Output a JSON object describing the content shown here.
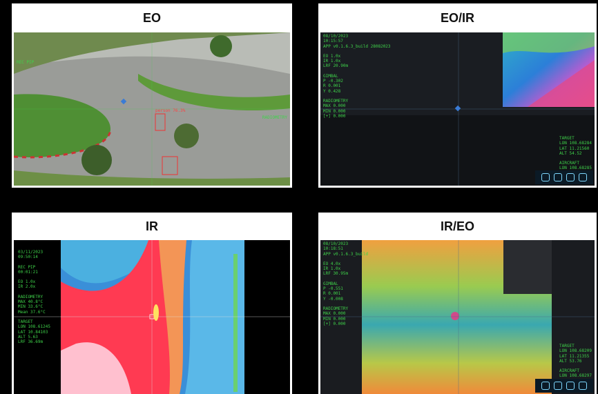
{
  "panels": [
    {
      "title": "EO",
      "left_groups": [
        [
          "REC PIP"
        ]
      ],
      "right_groups": [
        [
          "RADIOMETRY"
        ]
      ],
      "detection": "person 76.3%"
    },
    {
      "title": "EO/IR",
      "left_groups": [
        [
          "08/10/2023",
          "10:15:57",
          "APP v0.1.6.3_build 28082023"
        ],
        [
          "EO 1.0x",
          "IR 1.0x",
          "LRF 20.90m"
        ],
        [
          "GIMBAL",
          "P -0.302",
          "R 0.001",
          "Y 0.428"
        ],
        [
          "RADIOMETRY",
          "MAX 0.000",
          "MIN 0.000",
          "[+] 0.000"
        ]
      ],
      "right_groups": [
        [
          "TARGET",
          "LON 108.68284",
          "LAT 11.21560",
          "ALT 54.52"
        ],
        [
          "AIRCRAFT",
          "LON 108.68285"
        ]
      ]
    },
    {
      "title": "IR",
      "left_groups": [
        [
          "03/11/2023",
          "09:50:14"
        ],
        [
          "REC PIP",
          "00:01:21"
        ],
        [
          "EO 1.0x",
          "IR 2.0x"
        ],
        [
          "RADIOMETRY",
          "MAX 40.8°C",
          "MIN 33.6°C",
          "Mean 37.6°C"
        ],
        [
          "TARGET",
          "LON 108.61245",
          "LAT 10.84103",
          "ALT 5.63",
          "LRF 36.69m"
        ]
      ],
      "right_groups": []
    },
    {
      "title": "IR/EO",
      "left_groups": [
        [
          "08/10/2023",
          "10:18:51",
          "APP v0.1.6.3_build"
        ],
        [
          "EO 4.0x",
          "IR 1.0x",
          "LRF 30.95m"
        ],
        [
          "GIMBAL",
          "P -0.551",
          "R 0.001",
          "Y -0.008"
        ],
        [
          "RADIOMETRY",
          "MAX 0.000",
          "MIN 0.000",
          "[+] 0.000"
        ]
      ],
      "right_groups": [
        [
          "TARGET",
          "LON 108.68209",
          "LAT 11.21355",
          "ALT 53.76"
        ],
        [
          "AIRCRAFT",
          "LON 108.68297"
        ]
      ]
    }
  ]
}
